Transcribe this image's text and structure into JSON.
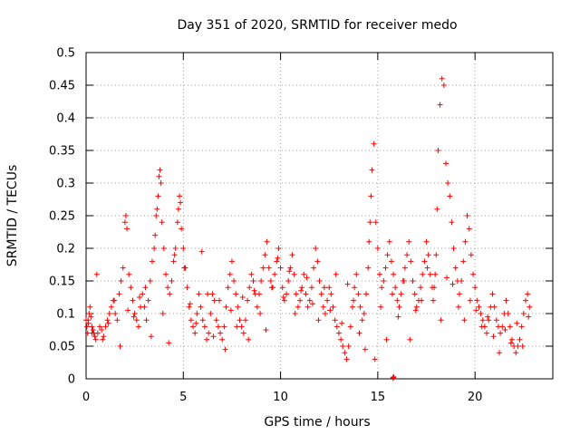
{
  "chart_data": {
    "type": "scatter",
    "title": "Day 351 of 2020, SRMTID for receiver medo",
    "xlabel": "GPS time / hours",
    "ylabel": "SRMTID / TECUs",
    "xlim": [
      0,
      24
    ],
    "ylim": [
      0,
      0.5
    ],
    "xticks": [
      0,
      5,
      10,
      15,
      20
    ],
    "yticks": [
      0,
      0.05,
      0.1,
      0.15,
      0.2,
      0.25,
      0.3,
      0.35,
      0.4,
      0.45,
      0.5
    ],
    "xtick_labels": [
      "0",
      "5",
      "10",
      "15",
      "20"
    ],
    "ytick_labels": [
      "0",
      "0.05",
      "0.1",
      "0.15",
      "0.2",
      "0.25",
      "0.3",
      "0.35",
      "0.4",
      "0.45",
      "0.5"
    ],
    "grid": true,
    "marker": "+",
    "series": [
      {
        "name": "SRMTID",
        "color": "#ff0000",
        "x": [
          0.0,
          0.04,
          0.08,
          0.12,
          0.16,
          0.2,
          0.25,
          0.3,
          0.35,
          0.4,
          0.45,
          0.5,
          0.6,
          0.7,
          0.8,
          0.9,
          1.0,
          1.1,
          1.2,
          1.3,
          1.4,
          1.5,
          1.6,
          1.7,
          1.8,
          1.9,
          2.0,
          2.05,
          2.1,
          2.2,
          2.3,
          2.4,
          2.5,
          2.6,
          2.7,
          2.8,
          2.9,
          3.0,
          3.1,
          3.2,
          3.3,
          3.4,
          3.5,
          3.55,
          3.6,
          3.65,
          3.7,
          3.75,
          3.8,
          3.85,
          3.9,
          4.0,
          4.1,
          4.2,
          4.3,
          4.4,
          4.5,
          4.6,
          4.7,
          4.75,
          4.8,
          4.85,
          4.9,
          5.0,
          5.1,
          5.2,
          5.3,
          5.4,
          5.5,
          5.6,
          5.7,
          5.8,
          5.9,
          6.0,
          6.1,
          6.2,
          6.3,
          6.4,
          6.5,
          6.6,
          6.7,
          6.8,
          6.9,
          7.0,
          7.1,
          7.2,
          7.3,
          7.4,
          7.5,
          7.6,
          7.7,
          7.8,
          7.9,
          8.0,
          8.1,
          8.2,
          8.3,
          8.4,
          8.5,
          8.6,
          8.7,
          8.8,
          8.9,
          9.0,
          9.1,
          9.2,
          9.3,
          9.4,
          9.5,
          9.6,
          9.7,
          9.8,
          9.9,
          10.0,
          10.1,
          10.2,
          10.3,
          10.4,
          10.5,
          10.6,
          10.7,
          10.8,
          10.9,
          11.0,
          11.1,
          11.2,
          11.3,
          11.4,
          11.5,
          11.6,
          11.7,
          11.8,
          11.9,
          12.0,
          12.1,
          12.2,
          12.3,
          12.4,
          12.5,
          12.6,
          12.7,
          12.8,
          12.9,
          13.0,
          13.1,
          13.2,
          13.3,
          13.4,
          13.5,
          13.6,
          13.7,
          13.8,
          13.9,
          14.0,
          14.1,
          14.2,
          14.3,
          14.4,
          14.5,
          14.55,
          14.6,
          14.65,
          14.7,
          14.8,
          14.9,
          15.0,
          15.1,
          15.2,
          15.3,
          15.4,
          15.5,
          15.6,
          15.7,
          15.8,
          15.9,
          16.0,
          16.1,
          16.2,
          16.3,
          16.4,
          16.5,
          16.6,
          16.7,
          16.8,
          16.9,
          17.0,
          17.1,
          17.2,
          17.3,
          17.4,
          17.5,
          17.6,
          17.7,
          17.8,
          17.85,
          17.9,
          17.95,
          18.0,
          18.05,
          18.1,
          18.2,
          18.3,
          18.4,
          18.5,
          18.6,
          18.7,
          18.8,
          18.9,
          19.0,
          19.1,
          19.2,
          19.3,
          19.4,
          19.5,
          19.6,
          19.7,
          19.8,
          19.9,
          20.0,
          20.1,
          20.2,
          20.3,
          20.4,
          20.5,
          20.6,
          20.7,
          20.8,
          20.9,
          21.0,
          21.1,
          21.2,
          21.3,
          21.4,
          21.5,
          21.6,
          21.7,
          21.8,
          21.9,
          22.0,
          22.1,
          22.2,
          22.3,
          22.4,
          22.5,
          22.6,
          22.7,
          22.8,
          0.1,
          0.3,
          0.55,
          0.85,
          1.15,
          1.45,
          1.75,
          2.15,
          2.45,
          2.75,
          3.05,
          3.35,
          3.95,
          4.25,
          4.55,
          5.05,
          5.35,
          5.65,
          5.95,
          6.25,
          6.55,
          6.85,
          7.15,
          7.45,
          7.75,
          8.05,
          8.35,
          8.65,
          8.95,
          9.25,
          9.55,
          9.85,
          10.15,
          10.45,
          10.75,
          11.05,
          11.35,
          11.65,
          11.95,
          12.25,
          12.55,
          12.85,
          13.15,
          13.45,
          13.75,
          14.05,
          14.35,
          14.85,
          15.15,
          15.45,
          15.75,
          16.05,
          16.35,
          16.65,
          16.95,
          17.25,
          17.55,
          18.25,
          18.55,
          18.85,
          19.15,
          19.45,
          19.75,
          20.05,
          20.35,
          20.65,
          20.95,
          21.25,
          21.55,
          21.85,
          22.15,
          22.45,
          22.75,
          15.78,
          15.8,
          15.82
        ],
        "y": [
          0.09,
          0.08,
          0.07,
          0.085,
          0.1,
          0.11,
          0.095,
          0.08,
          0.075,
          0.07,
          0.065,
          0.06,
          0.07,
          0.08,
          0.075,
          0.065,
          0.08,
          0.09,
          0.1,
          0.11,
          0.12,
          0.1,
          0.09,
          0.13,
          0.15,
          0.17,
          0.24,
          0.25,
          0.23,
          0.16,
          0.14,
          0.12,
          0.1,
          0.09,
          0.08,
          0.11,
          0.13,
          0.11,
          0.09,
          0.12,
          0.15,
          0.18,
          0.2,
          0.22,
          0.25,
          0.26,
          0.28,
          0.31,
          0.32,
          0.3,
          0.24,
          0.2,
          0.16,
          0.14,
          0.13,
          0.15,
          0.18,
          0.2,
          0.24,
          0.26,
          0.28,
          0.27,
          0.23,
          0.2,
          0.17,
          0.14,
          0.11,
          0.09,
          0.08,
          0.07,
          0.1,
          0.13,
          0.11,
          0.09,
          0.08,
          0.06,
          0.07,
          0.1,
          0.13,
          0.12,
          0.09,
          0.08,
          0.07,
          0.06,
          0.08,
          0.11,
          0.14,
          0.16,
          0.18,
          0.15,
          0.13,
          0.11,
          0.09,
          0.08,
          0.07,
          0.09,
          0.12,
          0.14,
          0.16,
          0.15,
          0.13,
          0.11,
          0.13,
          0.15,
          0.17,
          0.19,
          0.21,
          0.17,
          0.15,
          0.14,
          0.16,
          0.18,
          0.2,
          0.17,
          0.14,
          0.12,
          0.13,
          0.15,
          0.17,
          0.19,
          0.16,
          0.13,
          0.11,
          0.12,
          0.14,
          0.16,
          0.13,
          0.11,
          0.12,
          0.14,
          0.17,
          0.2,
          0.18,
          0.15,
          0.13,
          0.11,
          0.1,
          0.12,
          0.14,
          0.13,
          0.11,
          0.09,
          0.08,
          0.07,
          0.06,
          0.05,
          0.04,
          0.03,
          0.05,
          0.08,
          0.11,
          0.14,
          0.16,
          0.13,
          0.11,
          0.09,
          0.1,
          0.13,
          0.17,
          0.21,
          0.24,
          0.28,
          0.32,
          0.36,
          0.24,
          0.2,
          0.16,
          0.14,
          0.15,
          0.17,
          0.19,
          0.21,
          0.18,
          0.16,
          0.14,
          0.12,
          0.11,
          0.13,
          0.15,
          0.17,
          0.19,
          0.21,
          0.18,
          0.15,
          0.13,
          0.11,
          0.12,
          0.14,
          0.16,
          0.18,
          0.21,
          0.19,
          0.16,
          0.14,
          0.12,
          0.14,
          0.16,
          0.19,
          0.26,
          0.35,
          0.42,
          0.46,
          0.45,
          0.33,
          0.3,
          0.28,
          0.24,
          0.2,
          0.17,
          0.15,
          0.13,
          0.15,
          0.18,
          0.21,
          0.25,
          0.23,
          0.19,
          0.16,
          0.14,
          0.12,
          0.11,
          0.1,
          0.09,
          0.08,
          0.07,
          0.09,
          0.11,
          0.13,
          0.11,
          0.09,
          0.08,
          0.07,
          0.08,
          0.1,
          0.12,
          0.1,
          0.08,
          0.06,
          0.05,
          0.04,
          0.05,
          0.06,
          0.08,
          0.1,
          0.12,
          0.13,
          0.11,
          0.09,
          0.07,
          0.16,
          0.06,
          0.085,
          0.12,
          0.05,
          0.105,
          0.095,
          0.125,
          0.14,
          0.065,
          0.1,
          0.055,
          0.19,
          0.17,
          0.115,
          0.085,
          0.195,
          0.13,
          0.065,
          0.12,
          0.045,
          0.105,
          0.08,
          0.125,
          0.06,
          0.135,
          0.1,
          0.075,
          0.14,
          0.185,
          0.125,
          0.165,
          0.1,
          0.135,
          0.155,
          0.115,
          0.09,
          0.14,
          0.105,
          0.16,
          0.085,
          0.145,
          0.12,
          0.07,
          0.045,
          0.03,
          0.11,
          0.06,
          0.13,
          0.095,
          0.15,
          0.06,
          0.105,
          0.12,
          0.17,
          0.09,
          0.155,
          0.145,
          0.11,
          0.09,
          0.12,
          0.105,
          0.08,
          0.095,
          0.065,
          0.04,
          0.075,
          0.055,
          0.085,
          0.05,
          0.095,
          0.001,
          0.002,
          0.003
        ]
      }
    ]
  }
}
